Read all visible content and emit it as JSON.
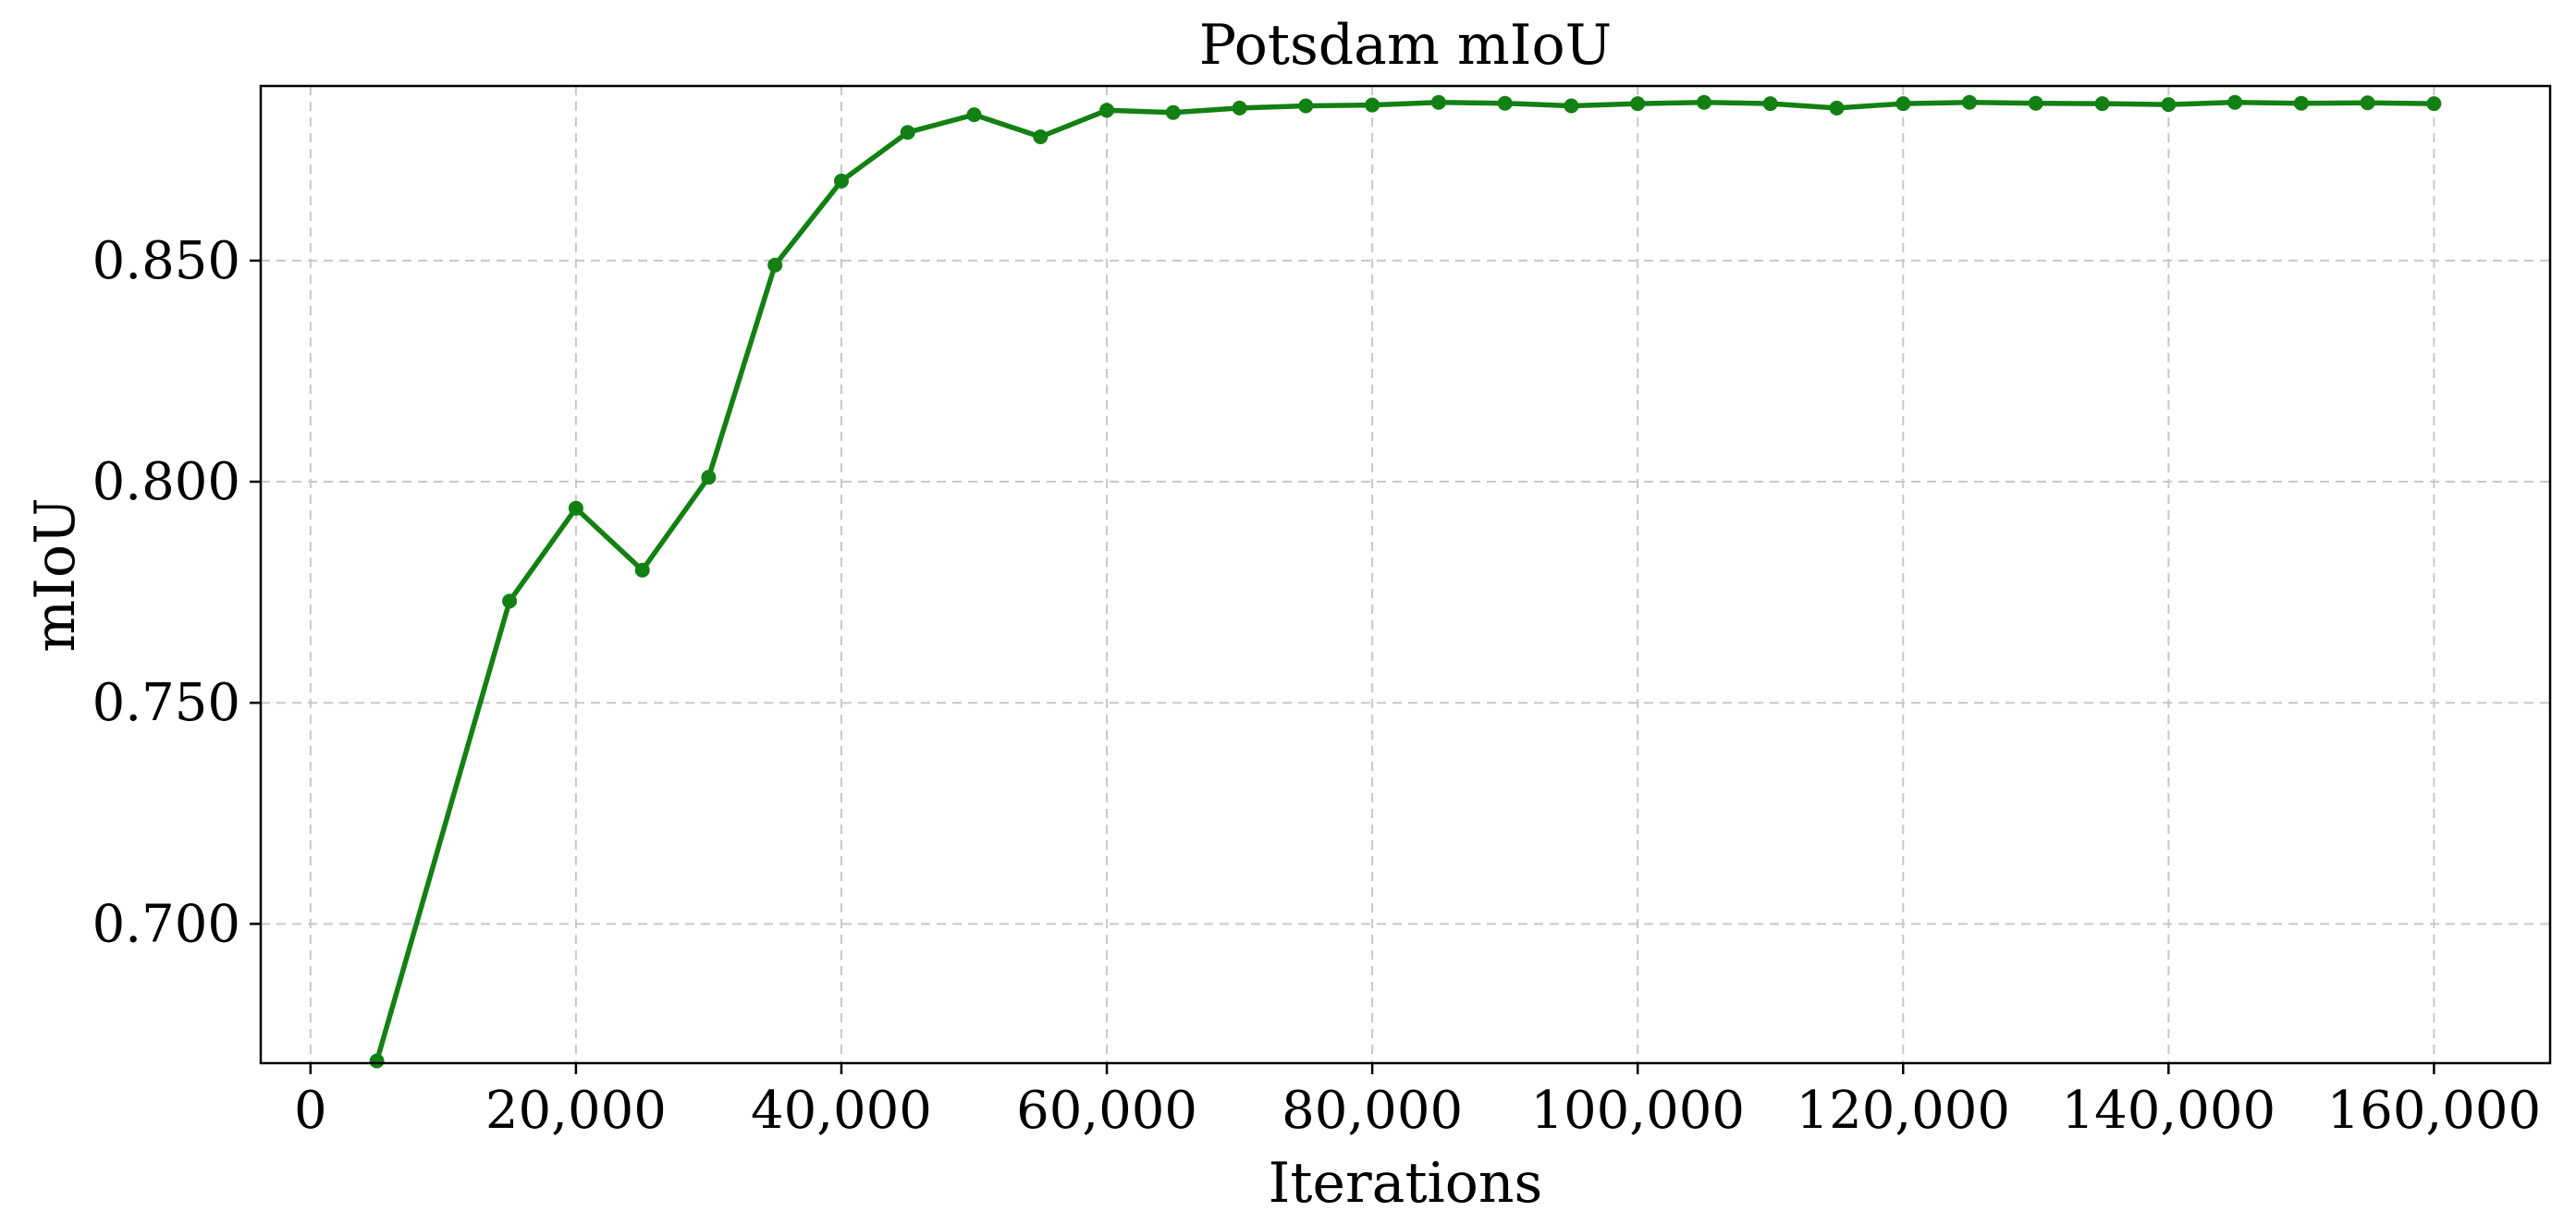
{
  "chart_data": {
    "type": "line",
    "title": "Potsdam mIoU",
    "xlabel": "Iterations",
    "ylabel": "mIoU",
    "xlim": [
      -3750,
      168750
    ],
    "ylim": [
      0.6685,
      0.8895
    ],
    "xticks": [
      0,
      20000,
      40000,
      60000,
      80000,
      100000,
      120000,
      140000,
      160000
    ],
    "xtick_labels": [
      "0",
      "20,000",
      "40,000",
      "60,000",
      "80,000",
      "100,000",
      "120,000",
      "140,000",
      "160,000"
    ],
    "yticks": [
      0.7,
      0.75,
      0.8,
      0.85
    ],
    "ytick_labels": [
      "0.700",
      "0.750",
      "0.800",
      "0.850"
    ],
    "grid": true,
    "color": "#138013",
    "series": [
      {
        "x": [
          5000,
          15000,
          20000,
          25000,
          30000,
          35000,
          40000,
          45000,
          50000,
          55000,
          60000,
          65000,
          70000,
          75000,
          80000,
          85000,
          90000,
          95000,
          100000,
          105000,
          110000,
          115000,
          120000,
          125000,
          130000,
          135000,
          140000,
          145000,
          150000,
          155000,
          160000
        ],
        "values": [
          0.669,
          0.773,
          0.794,
          0.78,
          0.801,
          0.849,
          0.868,
          0.879,
          0.883,
          0.878,
          0.884,
          0.8835,
          0.8845,
          0.885,
          0.8852,
          0.8858,
          0.8856,
          0.885,
          0.8855,
          0.8858,
          0.8855,
          0.8845,
          0.8855,
          0.8858,
          0.8856,
          0.8855,
          0.8853,
          0.8858,
          0.8856,
          0.8857,
          0.8855
        ]
      }
    ]
  }
}
